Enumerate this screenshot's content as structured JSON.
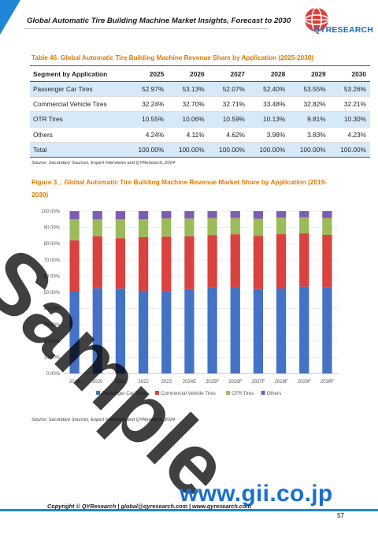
{
  "header": {
    "title": "Global Automatic Tire Building Machine Market Insights, Forecast to 2030",
    "logo_text": "QYRESEARCH",
    "accent_color": "#1e88d6"
  },
  "table": {
    "title": "Table 46.   Global Automatic Tire Building Machine Revenue Share by Application (2025-2030)",
    "headers": [
      "Segment by Application",
      "2025",
      "2026",
      "2027",
      "2028",
      "2029",
      "2030"
    ],
    "rows": [
      [
        "Passenger Car Tires",
        "52.97%",
        "53.13%",
        "52.07%",
        "52.40%",
        "53.55%",
        "53.26%"
      ],
      [
        "Commercial Vehicle Tires",
        "32.24%",
        "32.70%",
        "32.71%",
        "33.48%",
        "32.82%",
        "32.21%"
      ],
      [
        "OTR Tires",
        "10.55%",
        "10.06%",
        "10.59%",
        "10.13%",
        "9.81%",
        "10.30%"
      ],
      [
        "Others",
        "4.24%",
        "4.11%",
        "4.62%",
        "3.98%",
        "3.83%",
        "4.23%"
      ],
      [
        "Total",
        "100.00%",
        "100.00%",
        "100.00%",
        "100.00%",
        "100.00%",
        "100.00%"
      ]
    ],
    "source": "Source: Secondary Sources, Expert Interviews and QYResearch, 2024"
  },
  "figure": {
    "title": "Figure 3_. Global Automatic Tire Building Machine Revenue Market Share by Application (2019-2030)",
    "source": "Source: Secondary Sources, Expert Interviews and QYResearch, 2024"
  },
  "chart_data": {
    "type": "bar",
    "stacked": true,
    "categories": [
      "2019",
      "2020",
      "2021",
      "2022",
      "2023",
      "2024E",
      "2025F",
      "2026F",
      "2027F",
      "2028F",
      "2029F",
      "2030F"
    ],
    "series": [
      {
        "name": "Passenger Car Tires",
        "color": "#4472c4",
        "values": [
          50.5,
          52.5,
          52.3,
          51.0,
          50.8,
          52.0,
          52.97,
          53.13,
          52.07,
          52.4,
          53.55,
          53.26
        ]
      },
      {
        "name": "Commercial Vehicle Tires",
        "color": "#d9423f",
        "values": [
          31.5,
          32.0,
          31.0,
          33.0,
          33.5,
          32.5,
          32.24,
          32.7,
          32.71,
          33.48,
          32.82,
          32.21
        ]
      },
      {
        "name": "OTR Tires",
        "color": "#9bbb59",
        "values": [
          13.0,
          10.5,
          11.7,
          11.0,
          11.2,
          11.0,
          10.55,
          10.06,
          10.59,
          10.13,
          9.81,
          10.3
        ]
      },
      {
        "name": "Others",
        "color": "#7e5cb0",
        "values": [
          5.0,
          5.0,
          5.0,
          5.0,
          4.5,
          4.5,
          4.24,
          4.11,
          4.62,
          3.98,
          3.83,
          4.23
        ]
      }
    ],
    "y_ticks": [
      "0.00%",
      "10.00%",
      "20.00%",
      "30.00%",
      "40.00%",
      "50.00%",
      "60.00%",
      "70.00%",
      "80.00%",
      "90.00%",
      "100.00%"
    ],
    "ylim": [
      0,
      100
    ],
    "grid": true,
    "legend_position": "bottom"
  },
  "watermark": "Sample",
  "gii_text": "www.gii.co.jp",
  "footer": {
    "text": "Copyright © QYResearch | global@qyresearch.com | www.qyresearch.com",
    "page": "57"
  }
}
